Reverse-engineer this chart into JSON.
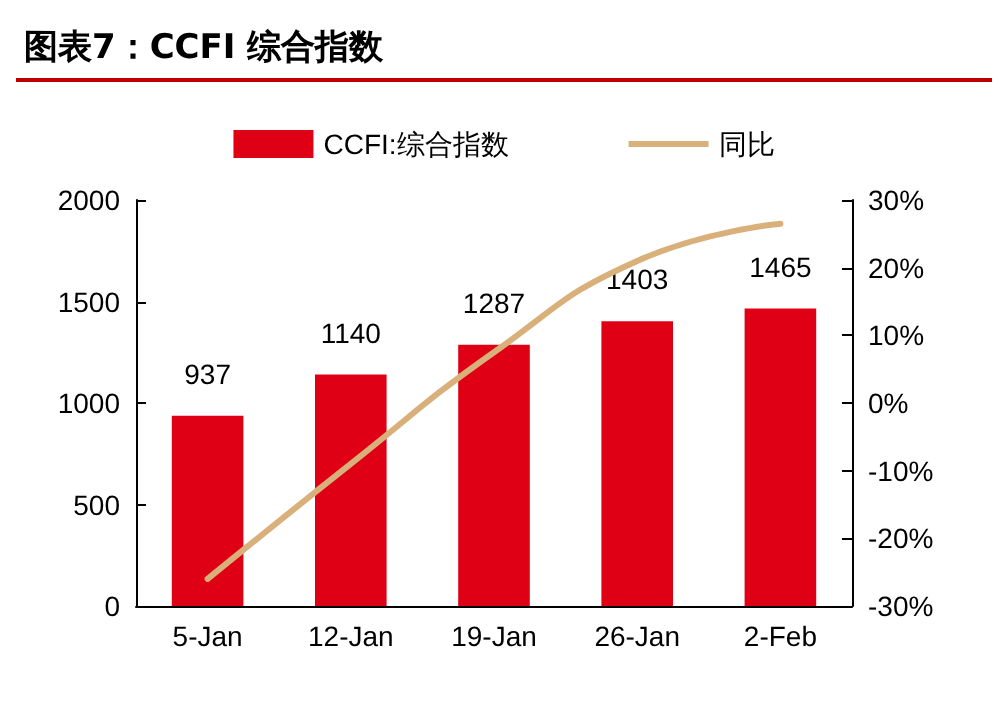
{
  "chart_data": {
    "type": "bar",
    "title": "图表7：CCFI 综合指数",
    "categories": [
      "5-Jan",
      "12-Jan",
      "19-Jan",
      "26-Jan",
      "2-Feb"
    ],
    "series": [
      {
        "name": "CCFI:综合指数",
        "color": "#e00016",
        "values": [
          937,
          1140,
          1287,
          1403,
          1465
        ],
        "value_labels": [
          "937",
          "1140",
          "1287",
          "1403",
          "1465"
        ]
      },
      {
        "name": "同比",
        "type": "line",
        "axis": "y2",
        "color": "#d9b07a",
        "values": [
          -26,
          -9,
          7.5,
          21,
          26.5
        ]
      }
    ],
    "ylim": [
      0,
      2000
    ],
    "yticks": [
      0,
      500,
      1000,
      1500,
      2000
    ],
    "y2lim": [
      -30,
      30
    ],
    "y2ticks": [
      {
        "value": -30,
        "label": "-30%"
      },
      {
        "value": -20,
        "label": "-20%"
      },
      {
        "value": -10,
        "label": "-10%"
      },
      {
        "value": 0,
        "label": "0%"
      },
      {
        "value": 10,
        "label": "10%"
      },
      {
        "value": 20,
        "label": "20%"
      },
      {
        "value": 30,
        "label": "30%"
      }
    ],
    "grid": false,
    "legend": "top",
    "marker": "none",
    "line_style": "solid"
  }
}
